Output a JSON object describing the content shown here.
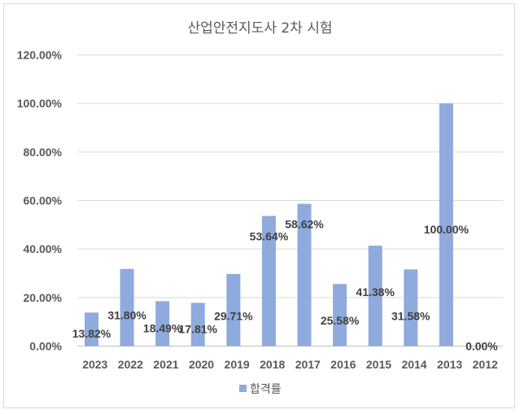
{
  "chart_data": {
    "type": "bar",
    "title": "산업안전지도사 2차 시험",
    "categories": [
      "2023",
      "2022",
      "2021",
      "2020",
      "2019",
      "2018",
      "2017",
      "2016",
      "2015",
      "2014",
      "2013",
      "2012"
    ],
    "series": [
      {
        "name": "합격률",
        "values": [
          13.82,
          31.8,
          18.49,
          17.81,
          29.71,
          53.64,
          58.62,
          25.58,
          41.38,
          31.58,
          100.0,
          0.0
        ],
        "labels": [
          "13.82%",
          "31.80%",
          "18.49%",
          "17.81%",
          "29.71%",
          "53.64%",
          "58.62%",
          "25.58%",
          "41.38%",
          "31.58%",
          "100.00%",
          "0.00%"
        ],
        "color": "#8faadc"
      }
    ],
    "yticks": [
      "0.00%",
      "20.00%",
      "40.00%",
      "60.00%",
      "80.00%",
      "100.00%",
      "120.00%"
    ],
    "ylim": [
      0,
      120
    ],
    "xlabel": "",
    "ylabel": "",
    "grid": true,
    "legend": "bottom"
  }
}
